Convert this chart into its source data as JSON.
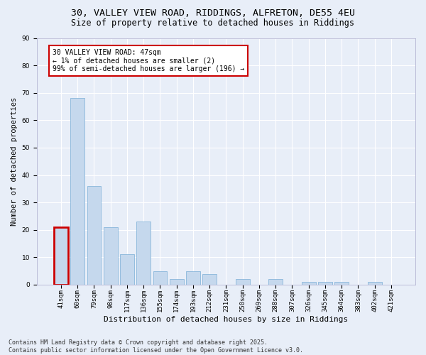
{
  "title1": "30, VALLEY VIEW ROAD, RIDDINGS, ALFRETON, DE55 4EU",
  "title2": "Size of property relative to detached houses in Riddings",
  "xlabel": "Distribution of detached houses by size in Riddings",
  "ylabel": "Number of detached properties",
  "categories": [
    "41sqm",
    "60sqm",
    "79sqm",
    "98sqm",
    "117sqm",
    "136sqm",
    "155sqm",
    "174sqm",
    "193sqm",
    "212sqm",
    "231sqm",
    "250sqm",
    "269sqm",
    "288sqm",
    "307sqm",
    "326sqm",
    "345sqm",
    "364sqm",
    "383sqm",
    "402sqm",
    "421sqm"
  ],
  "values": [
    21,
    68,
    36,
    21,
    11,
    23,
    5,
    2,
    5,
    4,
    0,
    2,
    0,
    2,
    0,
    1,
    1,
    1,
    0,
    1,
    0
  ],
  "bar_color": "#c5d8ed",
  "bar_edge_color": "#7aaed6",
  "highlight_bar_index": 0,
  "highlight_edge_color": "#cc0000",
  "annotation_text": "30 VALLEY VIEW ROAD: 47sqm\n← 1% of detached houses are smaller (2)\n99% of semi-detached houses are larger (196) →",
  "annotation_box_color": "#ffffff",
  "annotation_box_edge_color": "#cc0000",
  "ylim": [
    0,
    90
  ],
  "yticks": [
    0,
    10,
    20,
    30,
    40,
    50,
    60,
    70,
    80,
    90
  ],
  "footer": "Contains HM Land Registry data © Crown copyright and database right 2025.\nContains public sector information licensed under the Open Government Licence v3.0.",
  "bg_color": "#e8eef8",
  "grid_color": "#ffffff",
  "title_fontsize": 9.5,
  "subtitle_fontsize": 8.5,
  "xlabel_fontsize": 8,
  "ylabel_fontsize": 7.5,
  "tick_fontsize": 6.5,
  "annotation_fontsize": 7,
  "footer_fontsize": 6
}
